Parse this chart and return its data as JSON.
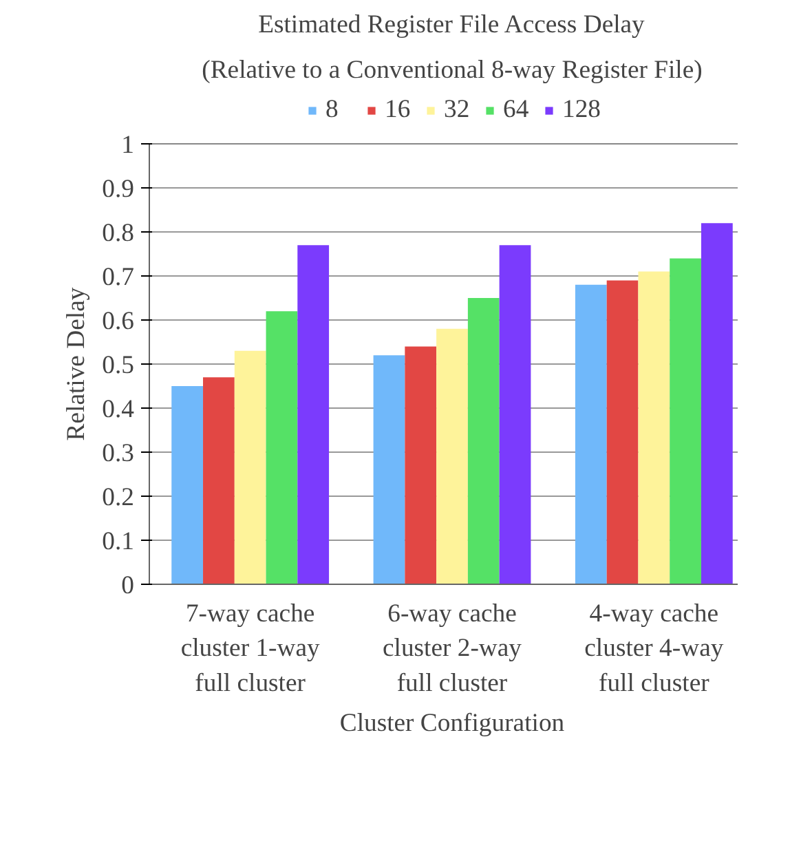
{
  "chart_data": {
    "type": "bar",
    "title": "Estimated Register File Access Delay",
    "subtitle": "(Relative to a Conventional 8-way Register File)",
    "xlabel": "Cluster Configuration",
    "ylabel": "Relative Delay",
    "categories": [
      "7-way cache cluster 1-way full cluster",
      "6-way cache cluster 2-way full cluster",
      "4-way cache cluster 4-way full cluster"
    ],
    "series": [
      {
        "name": "8",
        "color": "#70b8fa",
        "values": [
          0.45,
          0.52,
          0.68
        ]
      },
      {
        "name": "16",
        "color": "#e24744",
        "values": [
          0.47,
          0.54,
          0.69
        ]
      },
      {
        "name": "32",
        "color": "#fef39a",
        "values": [
          0.53,
          0.58,
          0.71
        ]
      },
      {
        "name": "64",
        "color": "#55e166",
        "values": [
          0.62,
          0.65,
          0.74
        ]
      },
      {
        "name": "128",
        "color": "#7b3bfd",
        "values": [
          0.77,
          0.77,
          0.82
        ]
      }
    ],
    "ylim": [
      0,
      1
    ],
    "yticks": [
      0,
      0.1,
      0.2,
      0.3,
      0.4,
      0.5,
      0.6,
      0.7,
      0.8,
      0.9,
      1
    ],
    "grid": "y",
    "legend": "top"
  }
}
